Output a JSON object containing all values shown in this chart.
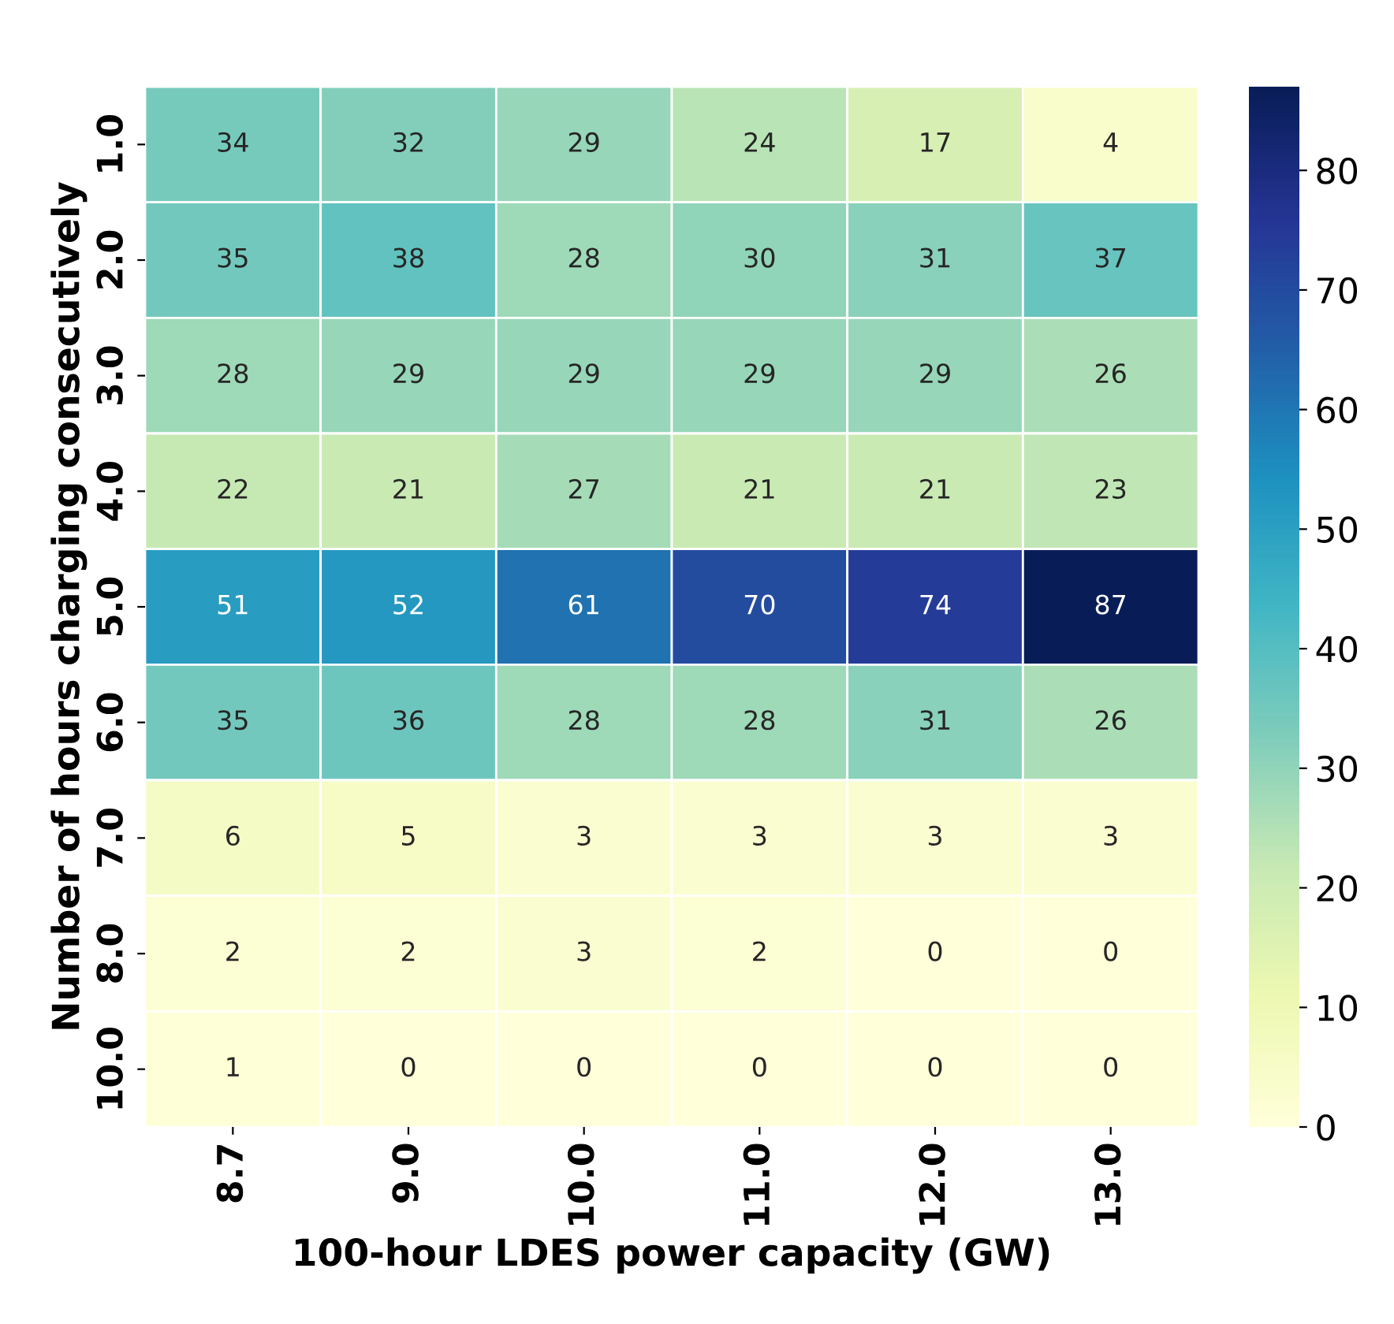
{
  "chart_data": {
    "type": "heatmap",
    "xlabel": "100-hour LDES power capacity (GW)",
    "ylabel": "Number of hours charging consecutively",
    "categories": [
      "8.7",
      "9.0",
      "10.0",
      "11.0",
      "12.0",
      "13.0"
    ],
    "y_categories": [
      "1.0",
      "2.0",
      "3.0",
      "4.0",
      "5.0",
      "6.0",
      "7.0",
      "8.0",
      "10.0"
    ],
    "cells": [
      [
        34,
        32,
        29,
        24,
        17,
        4
      ],
      [
        35,
        38,
        28,
        30,
        31,
        37
      ],
      [
        28,
        29,
        29,
        29,
        29,
        26
      ],
      [
        22,
        21,
        27,
        21,
        21,
        23
      ],
      [
        51,
        52,
        61,
        70,
        74,
        87
      ],
      [
        35,
        36,
        28,
        28,
        31,
        26
      ],
      [
        6,
        5,
        3,
        3,
        3,
        3
      ],
      [
        2,
        2,
        3,
        2,
        0,
        0
      ],
      [
        1,
        0,
        0,
        0,
        0,
        0
      ]
    ],
    "clim": [
      0,
      87
    ],
    "cticks": [
      0,
      10,
      20,
      30,
      40,
      50,
      60,
      70,
      80
    ],
    "data_labels": true
  }
}
